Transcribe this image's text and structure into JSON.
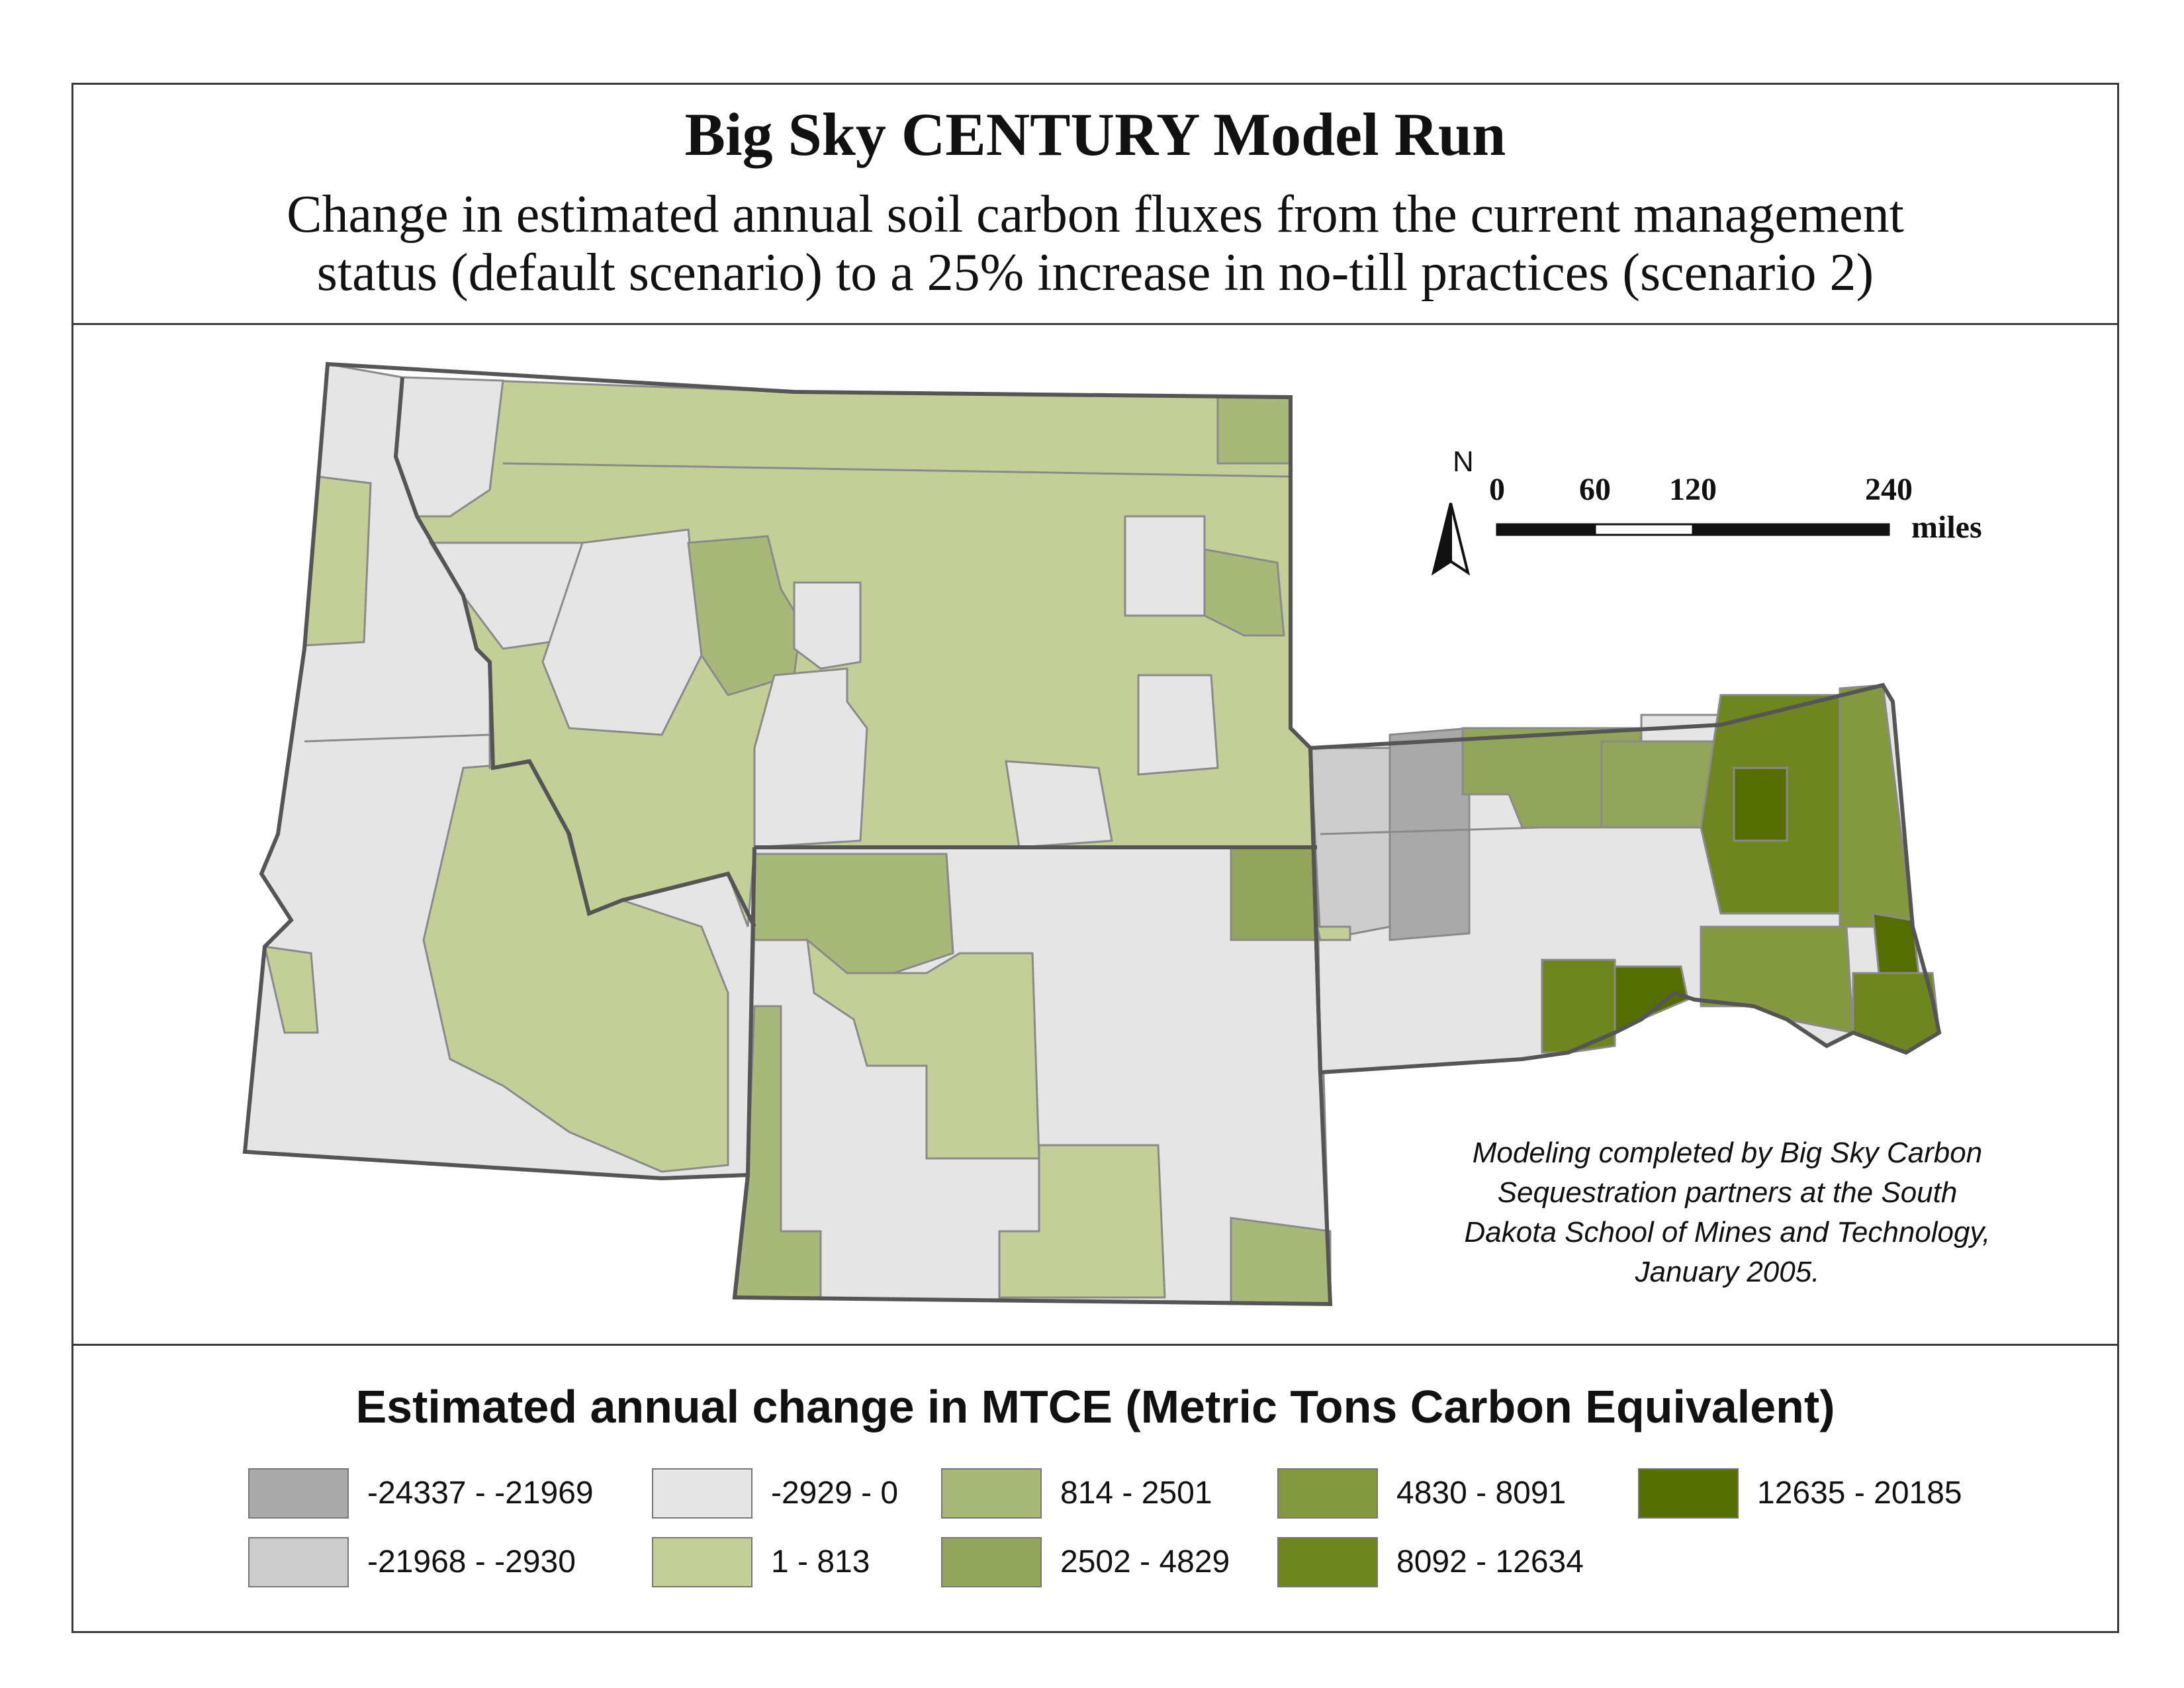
{
  "header": {
    "title": "Big Sky CENTURY Model Run",
    "subtitle_line1": "Change in estimated annual soil carbon fluxes from the current management",
    "subtitle_line2": "status (default scenario) to a 25% increase in no-till practices (scenario 2)"
  },
  "map": {
    "north_label": "N",
    "scale_ticks": [
      "0",
      "60",
      "120",
      "240"
    ],
    "scale_unit": "miles",
    "credit_lines": [
      "Modeling completed by Big Sky Carbon",
      "Sequestration partners at the South",
      "Dakota School of Mines and Technology,",
      "January 2005."
    ]
  },
  "legend": {
    "title": "Estimated annual change in MTCE (Metric Tons Carbon Equivalent)",
    "classes": [
      {
        "label": "-24337 - -21969",
        "color": "#a9a9a9"
      },
      {
        "label": "-21968 - -2930",
        "color": "#cdcdcd"
      },
      {
        "label": "-2929 - 0",
        "color": "#e5e5e5"
      },
      {
        "label": "1 - 813",
        "color": "#c3cf97"
      },
      {
        "label": "814 - 2501",
        "color": "#a8b878"
      },
      {
        "label": "2502 - 4829",
        "color": "#93a55b"
      },
      {
        "label": "4830 - 8091",
        "color": "#84983f"
      },
      {
        "label": "8092 - 12634",
        "color": "#6f851f"
      },
      {
        "label": "12635 - 20185",
        "color": "#566e00"
      }
    ]
  }
}
